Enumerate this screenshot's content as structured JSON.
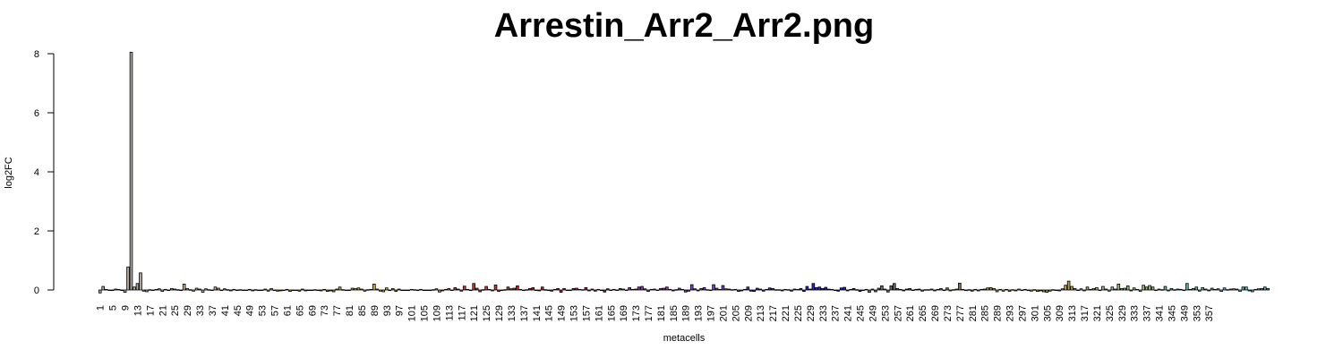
{
  "chart_data": {
    "type": "bar",
    "title": "Arrestin_Arr2_Arr2.png",
    "xlabel": "metacells",
    "ylabel": "log2FC",
    "ylim": [
      0,
      8
    ],
    "y_ticks": [
      "0",
      "2",
      "4",
      "6",
      "8"
    ],
    "n_categories": 358,
    "x_tick_labels": [
      "1",
      "5",
      "9",
      "13",
      "17",
      "21",
      "25",
      "29",
      "33",
      "37",
      "41",
      "45",
      "49",
      "53",
      "57",
      "61",
      "65",
      "69",
      "73",
      "77",
      "81",
      "85",
      "89",
      "93",
      "97",
      "101",
      "105",
      "109",
      "113",
      "117",
      "121",
      "125",
      "129",
      "133",
      "137",
      "141",
      "145",
      "149",
      "153",
      "157",
      "161",
      "165",
      "169",
      "173",
      "177",
      "181",
      "185",
      "189",
      "193",
      "197",
      "201",
      "205",
      "209",
      "213",
      "217",
      "221",
      "225",
      "229",
      "233",
      "237",
      "241",
      "245",
      "249",
      "253",
      "257",
      "261",
      "265",
      "269",
      "273",
      "277",
      "281",
      "285",
      "289",
      "293",
      "297",
      "301",
      "305",
      "309",
      "313",
      "317",
      "321",
      "325",
      "329",
      "333",
      "337",
      "341",
      "345",
      "349",
      "353",
      "357"
    ],
    "values": [
      -0.1,
      0.12,
      0.02,
      0,
      -0.02,
      0.03,
      0.02,
      0,
      -0.08,
      0.78,
      8.05,
      0.1,
      0.22,
      0.58,
      -0.04,
      -0.06,
      0.01,
      -0.02,
      0.02,
      0.04,
      -0.05,
      0.02,
      -0.01,
      0.05,
      0.03,
      0.01,
      -0.02,
      0.2,
      0.05,
      0.01,
      -0.04,
      0.06,
      0.03,
      -0.08,
      0.04,
      0.01,
      0,
      0.1,
      0.06,
      -0.02,
      0.04,
      0.01,
      -0.03,
      0.02,
      0,
      0.01,
      -0.01,
      0,
      0.02,
      -0.03,
      0.01,
      -0.02,
      -0.01,
      0.03,
      -0.04,
      0.05,
      0,
      -0.04,
      -0.03,
      -0.02,
      0.02,
      -0.05,
      -0.02,
      -0.01,
      -0.04,
      0.03,
      -0.03,
      0,
      -0.02,
      0.01,
      -0.02,
      -0.03,
      0.02,
      -0.05,
      -0.03,
      -0.06,
      0.03,
      0.1,
      0.01,
      -0.02,
      0,
      0.06,
      0.05,
      0.07,
      0.03,
      -0.04,
      0.01,
      0.02,
      0.2,
      0.03,
      -0.04,
      -0.06,
      0.07,
      -0.02,
      0.05,
      -0.05,
      0.03,
      -0.02,
      0,
      -0.02,
      0.02,
      0.01,
      -0.02,
      0.02,
      -0.01,
      0,
      -0.02,
      0.01,
      0.04,
      -0.07,
      -0.03,
      0.02,
      0.05,
      -0.01,
      0.08,
      0.03,
      -0.04,
      0.13,
      0.02,
      -0.02,
      0.22,
      0.06,
      -0.06,
      0.01,
      0.12,
      0.02,
      -0.03,
      0.17,
      -0.05,
      -0.02,
      0.01,
      0.1,
      0.04,
      0.06,
      0.14,
      0.02,
      -0.02,
      0.01,
      0.05,
      0.08,
      0,
      -0.03,
      0.1,
      0.01,
      -0.02,
      -0.04,
      0.02,
      0.05,
      -0.08,
      0.05,
      -0.01,
      -0.02,
      0.05,
      0.06,
      0.02,
      0.01,
      0.08,
      -0.03,
      0.03,
      -0.04,
      0.02,
      -0.02,
      -0.07,
      0.04,
      0,
      0.02,
      -0.01,
      0.05,
      0.03,
      -0.01,
      0.08,
      0.02,
      0.03,
      0.1,
      0.12,
      0.04,
      -0.05,
      0.02,
      0.03,
      0,
      0.05,
      0.06,
      0.1,
      0.02,
      -0.03,
      0.01,
      0.06,
      0.02,
      -0.07,
      -0.04,
      0.18,
      0.04,
      -0.03,
      0.05,
      0.08,
      0.01,
      -0.02,
      0.18,
      0.06,
      0.02,
      0.15,
      0.04,
      0.03,
      0.01,
      0.02,
      -0.05,
      -0.03,
      0.02,
      0.1,
      -0.04,
      -0.05,
      0.06,
      0.03,
      -0.04,
      0.02,
      0.07,
      0.05,
      0.01,
      0.01,
      -0.03,
      0.02,
      0.01,
      -0.04,
      0.03,
      0.02,
      0.05,
      -0.05,
      0.12,
      0.03,
      0.22,
      0.08,
      0.1,
      0.05,
      0.09,
      0.03,
      0.02,
      -0.02,
      -0.04,
      0.07,
      0.09,
      -0.03,
      0.02,
      0.05,
      0.01,
      -0.05,
      -0.02,
      0.02,
      -0.08,
      0.03,
      -0.06,
      0.06,
      0.14,
      0.03,
      -0.07,
      0.14,
      0.22,
      0.05,
      0.02,
      -0.03,
      0.03,
      0.05,
      -0.01,
      0.02,
      0.03,
      -0.04,
      0.01,
      0.01,
      0.03,
      -0.03,
      0.02,
      0.05,
      -0.02,
      0.07,
      -0.03,
      0.01,
      0.03,
      0.23,
      0.02,
      -0.02,
      0.01,
      -0.04,
      0.02,
      -0.03,
      0.02,
      0.03,
      0.07,
      0.08,
      0.05,
      -0.06,
      0.02,
      -0.04,
      0.02,
      -0.05,
      0.01,
      -0.03,
      0.03,
      -0.02,
      0.02,
      -0.02,
      -0.04,
      0.01,
      -0.05,
      -0.03,
      -0.06,
      -0.08,
      -0.04,
      0.01,
      -0.02,
      -0.03,
      0.04,
      0.16,
      0.3,
      0.12,
      0.05,
      -0.02,
      0.04,
      -0.03,
      0.1,
      0.02,
      0.05,
      0.08,
      -0.02,
      0.12,
      0.03,
      -0.04,
      0.1,
      0.03,
      0.2,
      0.05,
      0.06,
      0.14,
      -0.03,
      0.07,
      0.02,
      -0.05,
      0.16,
      0.1,
      0.15,
      0.1,
      -0.02,
      0.03,
      0.01,
      0.12,
      -0.03,
      0.05,
      0.01,
      0.03,
      0.02,
      -0.02,
      0.22,
      0.02,
      0.05,
      0.1,
      -0.04,
      0.08,
      0.03,
      -0.03,
      0.06,
      0.02,
      0.04,
      -0.05,
      0.07,
      0.01,
      0.03,
      0.04,
      0.03,
      -0.05,
      0.1,
      0.1,
      -0.03,
      -0.06,
      0.02,
      0.04,
      0.05,
      0.1,
      0.05
    ],
    "grid": false,
    "legend": "none"
  },
  "colors": {
    "palette": [
      "#b0a69c",
      "#c8ae8a",
      "#c99a4a",
      "#cf8a2b",
      "#d9a83c",
      "#d97b2e",
      "#cc3a2e",
      "#d81b2b",
      "#b0185a",
      "#a52ad0",
      "#7a3bd6",
      "#4d2fd6",
      "#2626d9",
      "#6b6b6b",
      "#8a6f4a",
      "#c8a04a",
      "#b8a440",
      "#8fbf7a",
      "#5ac0a8",
      "#3fc6d6"
    ]
  }
}
